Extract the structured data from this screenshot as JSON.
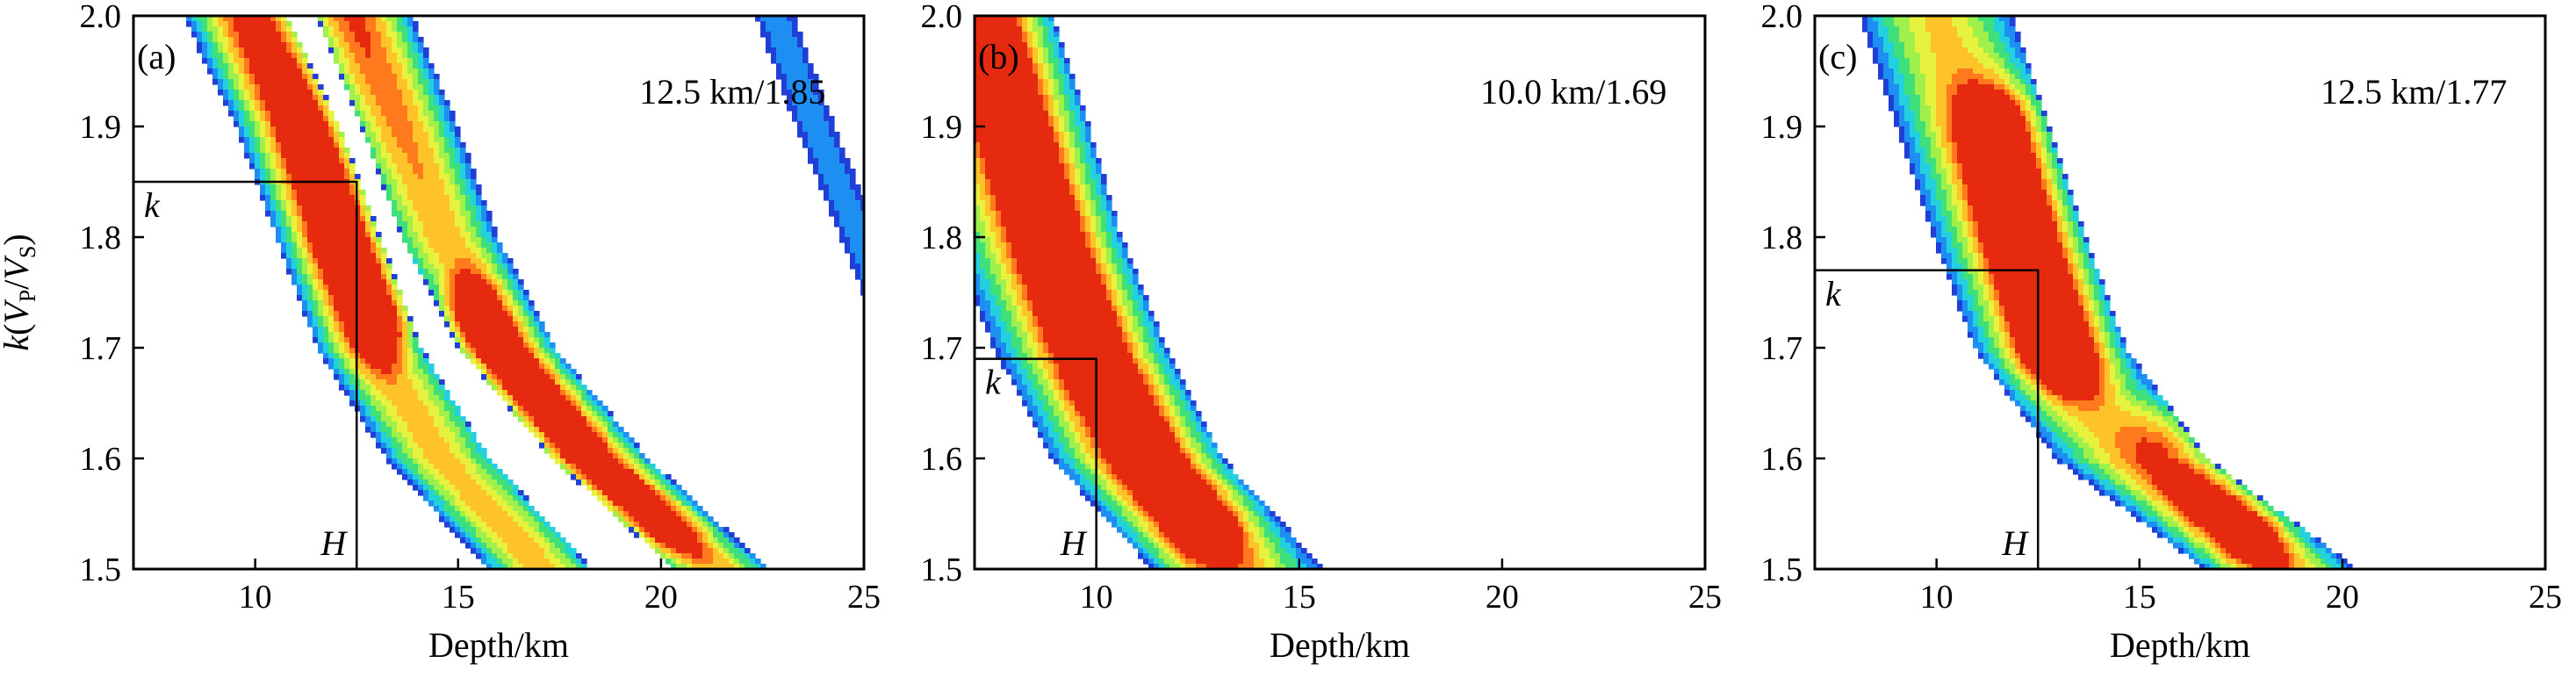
{
  "chart_data": [
    {
      "type": "heatmap",
      "panel_label": "(a)",
      "annotation": "12.5 km/1.85",
      "best_H": 12.5,
      "best_k": 1.85,
      "xlabel": "Depth/km",
      "ylabel": "k(VP/VS)",
      "xlim": [
        7,
        25
      ],
      "ylim": [
        1.5,
        2.0
      ],
      "x_ticks": [
        "10",
        "15",
        "20",
        "25"
      ],
      "y_ticks": [
        "1.5",
        "1.6",
        "1.7",
        "1.8",
        "1.9",
        "2.0"
      ],
      "marker_labels": {
        "k": "k",
        "H": "H"
      },
      "bands": [
        {
          "points": [
            [
              9.5,
              2.0
            ],
            [
              10.8,
              1.9
            ],
            [
              11.8,
              1.8
            ],
            [
              12.8,
              1.7
            ],
            [
              14.5,
              1.6
            ],
            [
              17,
              1.5
            ]
          ],
          "width": 2.6
        },
        {
          "points": [
            [
              12.7,
              2.0
            ],
            [
              13.8,
              1.9
            ],
            [
              14.8,
              1.8
            ],
            [
              16.2,
              1.7
            ],
            [
              18.5,
              1.6
            ],
            [
              21.5,
              1.5
            ]
          ],
          "width": 2.4
        }
      ],
      "ridges": [
        {
          "points": [
            [
              11.0,
              2.0
            ],
            [
              11.9,
              1.9
            ],
            [
              12.6,
              1.8
            ],
            [
              13.4,
              1.73
            ]
          ],
          "peak": 1.0
        },
        {
          "points": [
            [
              15.0,
              1.72
            ],
            [
              16.3,
              1.65
            ],
            [
              17.8,
              1.58
            ],
            [
              19.5,
              1.52
            ]
          ],
          "peak": 0.95
        }
      ],
      "fringe": {
        "points": [
          [
            22.8,
            2.0
          ],
          [
            23.8,
            1.9
          ],
          [
            24.9,
            1.8
          ]
        ],
        "width": 1.0
      }
    },
    {
      "type": "heatmap",
      "panel_label": "(b)",
      "annotation": "10.0 km/1.69",
      "best_H": 10.0,
      "best_k": 1.69,
      "xlabel": "Depth/km",
      "xlim": [
        7,
        25
      ],
      "ylim": [
        1.5,
        2.0
      ],
      "x_ticks": [
        "10",
        "15",
        "20",
        "25"
      ],
      "y_ticks": [
        "1.5",
        "1.6",
        "1.7",
        "1.8",
        "1.9",
        "2.0"
      ],
      "marker_labels": {
        "k": "k",
        "H": "H"
      },
      "bands": [
        {
          "points": [
            [
              7.0,
              1.98
            ],
            [
              7.7,
              1.9
            ],
            [
              8.5,
              1.8
            ],
            [
              9.6,
              1.7
            ],
            [
              11.0,
              1.6
            ],
            [
              13.5,
              1.5
            ]
          ],
          "width": 4.3
        }
      ],
      "ridges": [
        {
          "points": [
            [
              7.5,
              1.98
            ],
            [
              8.3,
              1.88
            ],
            [
              9.2,
              1.78
            ],
            [
              10.2,
              1.68
            ],
            [
              11.4,
              1.6
            ],
            [
              12.6,
              1.54
            ]
          ],
          "peak": 0.85
        }
      ]
    },
    {
      "type": "heatmap",
      "panel_label": "(c)",
      "annotation": "12.5 km/1.77",
      "best_H": 12.5,
      "best_k": 1.77,
      "xlabel": "Depth/km",
      "xlim": [
        7,
        25
      ],
      "ylim": [
        1.5,
        2.0
      ],
      "x_ticks": [
        "10",
        "15",
        "20",
        "25"
      ],
      "y_ticks": [
        "1.5",
        "1.6",
        "1.7",
        "1.8",
        "1.9",
        "2.0"
      ],
      "marker_labels": {
        "k": "k",
        "H": "H"
      },
      "bands": [
        {
          "points": [
            [
              10.0,
              2.0
            ],
            [
              10.9,
              1.9
            ],
            [
              11.8,
              1.8
            ],
            [
              12.8,
              1.7
            ],
            [
              14.8,
              1.6
            ],
            [
              18.5,
              1.5
            ]
          ],
          "width": 3.8
        }
      ],
      "ridges": [
        {
          "points": [
            [
              11.7,
              1.9
            ],
            [
              12.1,
              1.83
            ],
            [
              12.6,
              1.76
            ],
            [
              13.1,
              1.7
            ]
          ],
          "peak": 1.0
        },
        {
          "points": [
            [
              16.2,
              1.62
            ],
            [
              17.0,
              1.58
            ],
            [
              17.8,
              1.54
            ]
          ],
          "peak": 0.78
        }
      ]
    }
  ]
}
